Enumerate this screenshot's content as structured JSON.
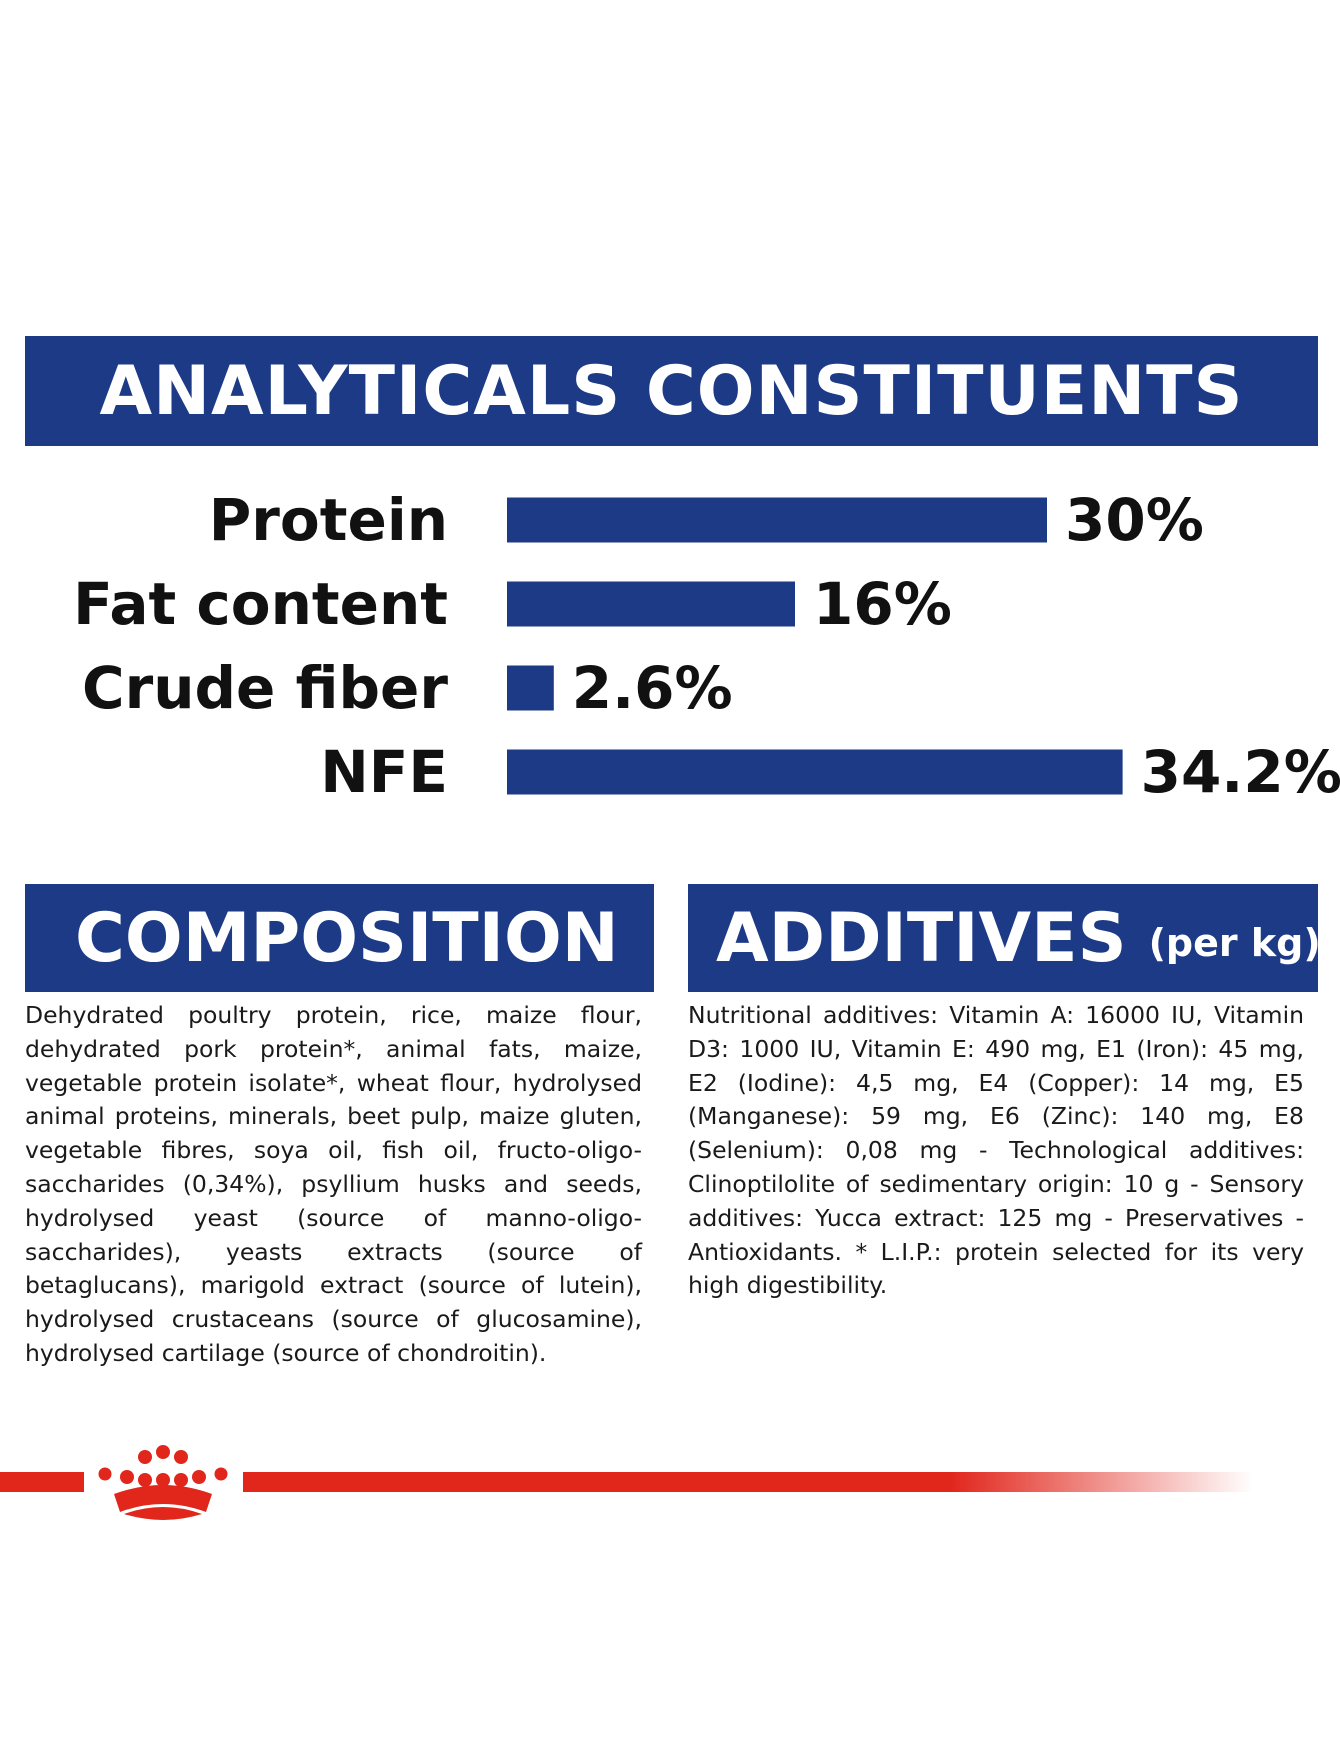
{
  "headers": {
    "analytical": "ANALYTICALS CONSTITUENTS",
    "composition": "COMPOSITION",
    "additives": "ADDITIVES",
    "additives_sub": "(per kg)"
  },
  "chart_data": {
    "type": "bar",
    "orientation": "horizontal",
    "title": "ANALYTICALS CONSTITUENTS",
    "categories": [
      "Protein",
      "Fat content",
      "Crude fiber",
      "NFE"
    ],
    "values": [
      30,
      16,
      2.6,
      34.2
    ],
    "value_labels": [
      "30%",
      "16%",
      "2.6%",
      "34.2%"
    ],
    "unit": "%",
    "grid": false,
    "legend": "none",
    "bar_color": "#1d3a86"
  },
  "composition_text": "Dehydrated poultry protein, rice, maize flour, dehydrated pork protein*, animal fats, maize, vegetable protein isolate*, wheat flour, hydrolysed animal proteins, minerals, beet pulp, maize gluten, vegetable fibres, soya oil, fish oil, fructo-oligo-saccharides (0,34%), psyllium husks and seeds, hydrolysed yeast (source of manno-oligo-saccharides), yeasts extracts (source of betaglucans), marigold extract (source of lutein), hydrolysed crustaceans (source of glucosamine), hydrolysed cartilage (source of chondroitin).",
  "additives_text": "Nutritional additives: Vitamin A: 16000 IU, Vitamin D3: 1000 IU, Vitamin E: 490 mg, E1 (Iron): 45 mg, E2 (Iodine): 4,5 mg, E4 (Copper): 14 mg, E5 (Manganese): 59 mg, E6 (Zinc): 140 mg, E8 (Selenium): 0,08 mg - Technological additives: Clinoptilolite of sedimentary origin: 10 g - Sensory additives: Yucca extract: 125 mg - Preservatives - Antioxidants. * L.I.P.: protein selected for its very high digestibility.",
  "colors": {
    "banner": "#1d3a86",
    "bar": "#1d3a86",
    "brand_red": "#e1261c"
  },
  "logo": {
    "icon": "crown-icon"
  }
}
